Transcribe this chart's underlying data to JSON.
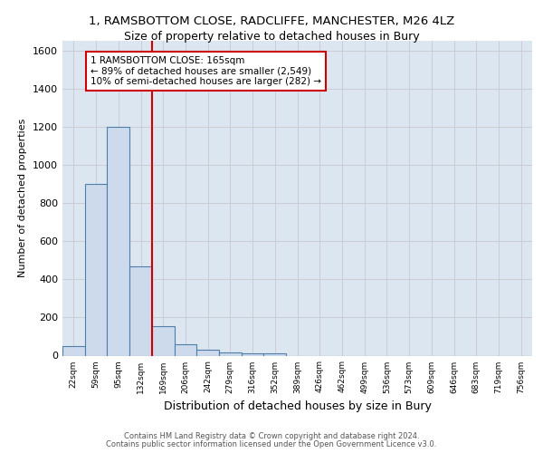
{
  "title_line1": "1, RAMSBOTTOM CLOSE, RADCLIFFE, MANCHESTER, M26 4LZ",
  "title_line2": "Size of property relative to detached houses in Bury",
  "xlabel": "Distribution of detached houses by size in Bury",
  "ylabel": "Number of detached properties",
  "footer_line1": "Contains HM Land Registry data © Crown copyright and database right 2024.",
  "footer_line2": "Contains public sector information licensed under the Open Government Licence v3.0.",
  "bin_labels": [
    "22sqm",
    "59sqm",
    "95sqm",
    "132sqm",
    "169sqm",
    "206sqm",
    "242sqm",
    "279sqm",
    "316sqm",
    "352sqm",
    "389sqm",
    "426sqm",
    "462sqm",
    "499sqm",
    "536sqm",
    "573sqm",
    "609sqm",
    "646sqm",
    "683sqm",
    "719sqm",
    "756sqm"
  ],
  "bar_values": [
    50,
    900,
    1200,
    470,
    155,
    60,
    30,
    15,
    12,
    10,
    0,
    0,
    0,
    0,
    0,
    0,
    0,
    0,
    0,
    0,
    0
  ],
  "bar_color": "#ccdaeb",
  "bar_edge_color": "#4d7faa",
  "grid_color": "#c8c8d0",
  "background_color": "#dce6f0",
  "vline_color": "#cc0000",
  "annotation_text_line1": "1 RAMSBOTTOM CLOSE: 165sqm",
  "annotation_text_line2": "← 89% of detached houses are smaller (2,549)",
  "annotation_text_line3": "10% of semi-detached houses are larger (282) →",
  "annotation_box_color": "white",
  "annotation_box_edge": "#cc0000",
  "ylim": [
    0,
    1650
  ],
  "yticks": [
    0,
    200,
    400,
    600,
    800,
    1000,
    1200,
    1400,
    1600
  ],
  "vline_index": 3.5
}
